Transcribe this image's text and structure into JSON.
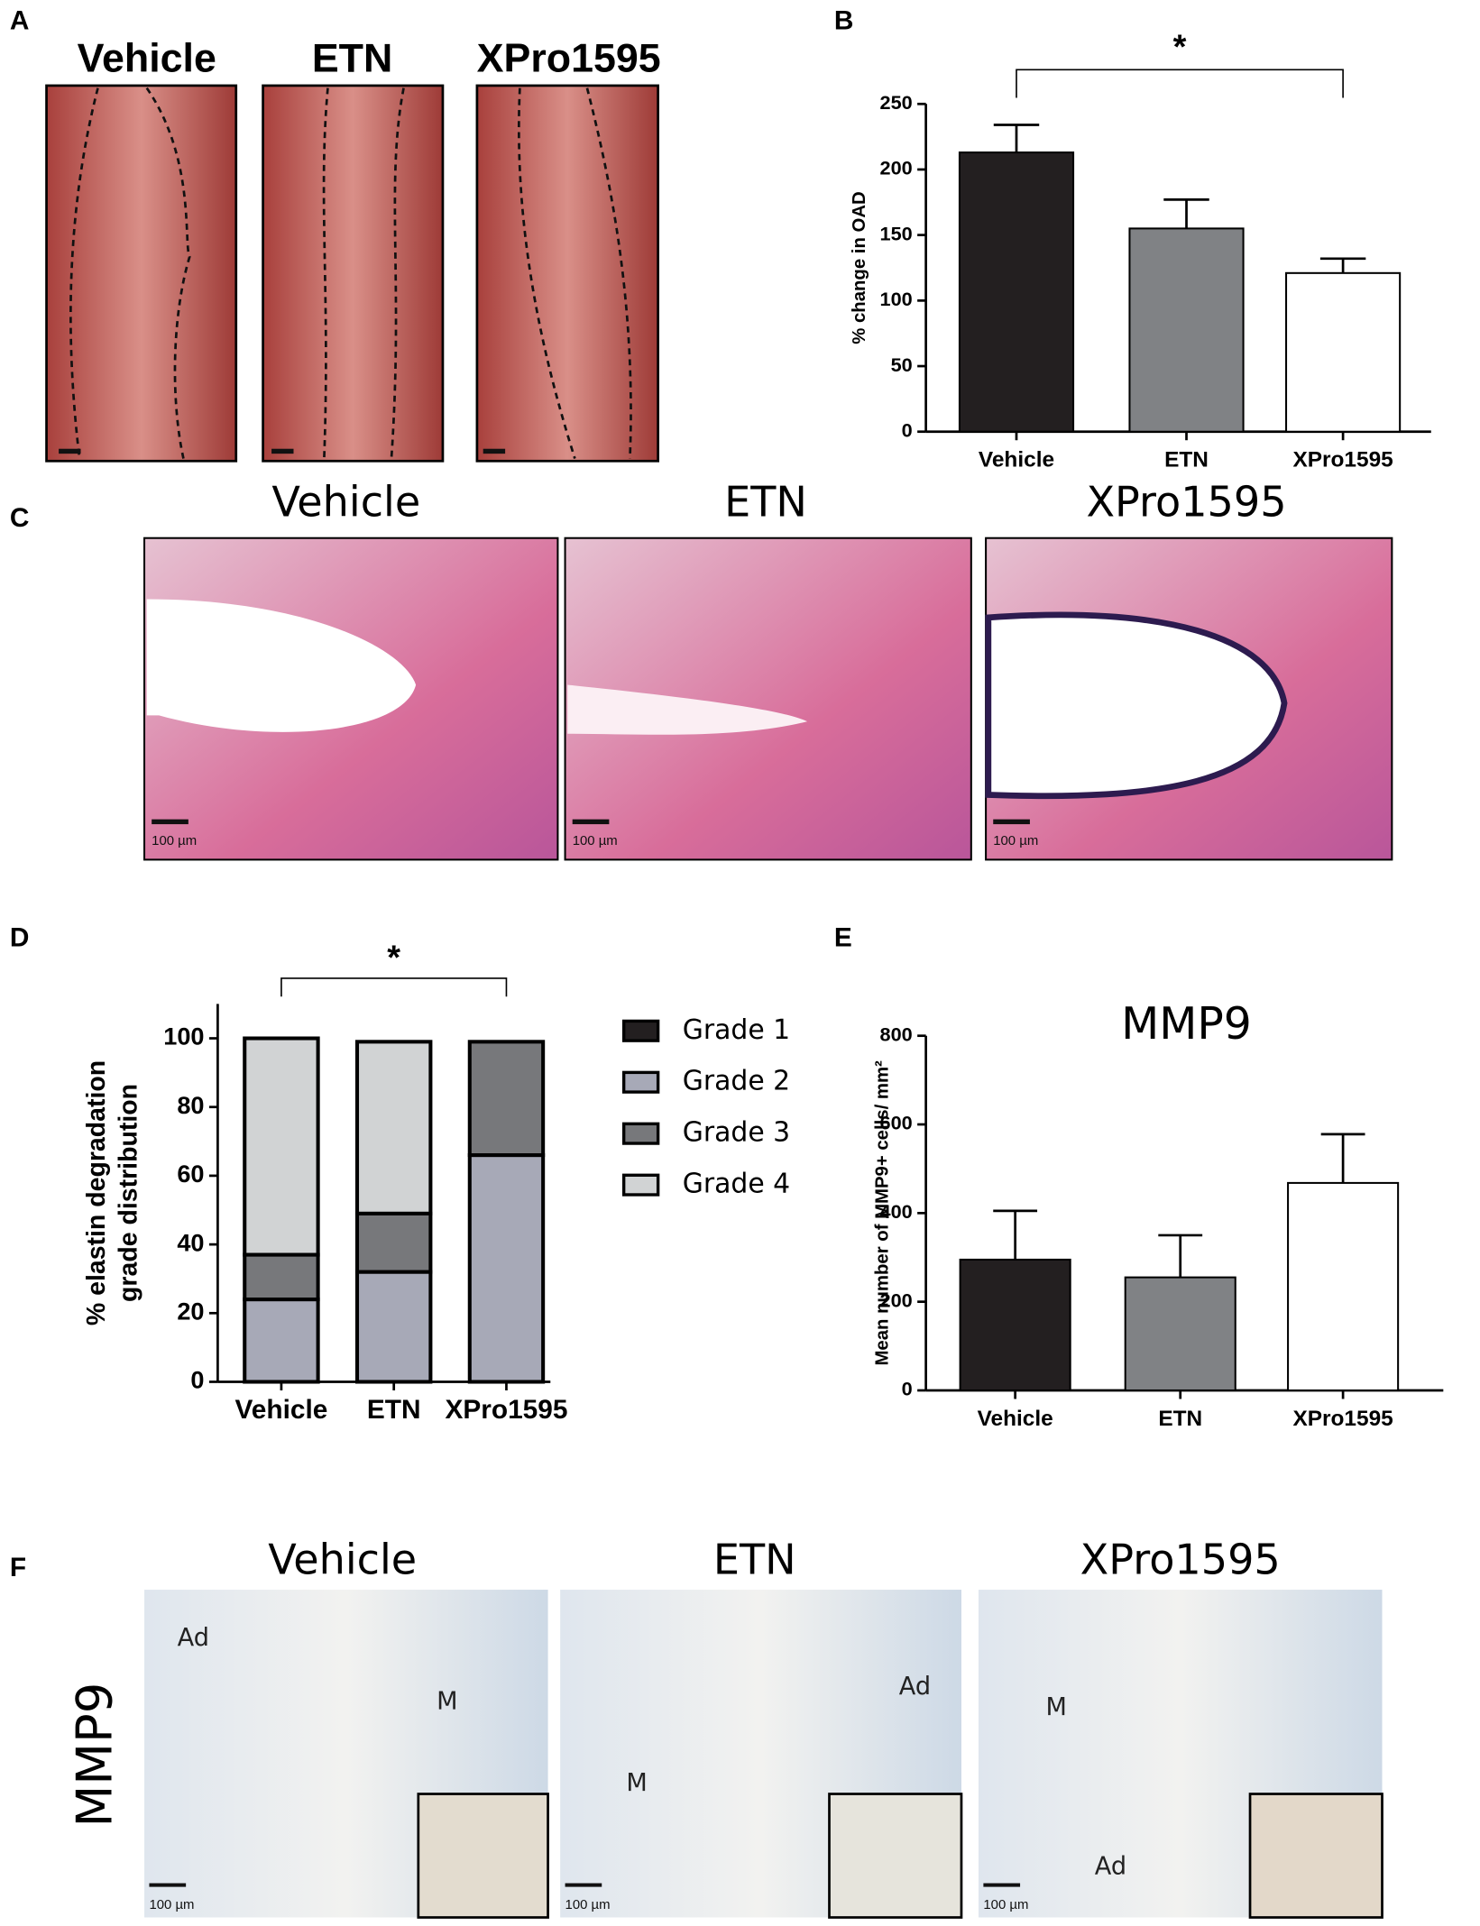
{
  "panel_labels": [
    "A",
    "B",
    "C",
    "D",
    "E",
    "F"
  ],
  "panels": {
    "a": {
      "headings": [
        "Vehicle",
        "ETN",
        "XPro1595"
      ]
    },
    "c": {
      "headings": [
        "Vehicle",
        "ETN",
        "XPro1595"
      ],
      "scale_label": "100 µm"
    },
    "f": {
      "headings": [
        "Vehicle",
        "ETN",
        "XPro1595"
      ],
      "scale_label": "100 µm",
      "row_label": "MMP9",
      "region_labels": [
        [
          "Ad",
          "M"
        ],
        [
          "Ad",
          "M"
        ],
        [
          "M",
          "Ad"
        ]
      ]
    }
  },
  "chart_data": [
    {
      "type": "bar",
      "ylabel": "% change in OAD",
      "categories": [
        "Vehicle",
        "ETN",
        "XPro1595"
      ],
      "values": [
        213,
        155,
        121
      ],
      "errors": [
        21,
        22,
        11
      ],
      "colors": [
        "#231f20",
        "#808285",
        "#ffffff"
      ],
      "ylim": [
        0,
        250
      ],
      "yticks": [
        0,
        50,
        100,
        150,
        200,
        250
      ],
      "annotation": "*"
    },
    {
      "type": "stacked-bar",
      "ylabel": [
        "% elastin degradation",
        "grade distribution"
      ],
      "categories": [
        "Vehicle",
        "ETN",
        "XPro1595"
      ],
      "series": [
        {
          "name": "Grade 1",
          "color": "#231f20",
          "values": [
            0,
            0,
            0
          ]
        },
        {
          "name": "Grade 2",
          "color": "#a7a9b7",
          "values": [
            24,
            32,
            66
          ]
        },
        {
          "name": "Grade 3",
          "color": "#77787b",
          "values": [
            13,
            17,
            33
          ]
        },
        {
          "name": "Grade 4",
          "color": "#d1d3d4",
          "values": [
            63,
            50,
            0
          ]
        }
      ],
      "ylim": [
        0,
        110
      ],
      "yticks": [
        0,
        20,
        40,
        60,
        80,
        100
      ],
      "annotation": "*",
      "legend": "right"
    },
    {
      "type": "bar",
      "title": "MMP9",
      "ylabel": "Mean number of MMP9+ cells/ mm²",
      "categories": [
        "Vehicle",
        "ETN",
        "XPro1595"
      ],
      "values": [
        295,
        255,
        468
      ],
      "errors": [
        110,
        95,
        110
      ],
      "colors": [
        "#231f20",
        "#808285",
        "#ffffff"
      ],
      "ylim": [
        0,
        800
      ],
      "yticks": [
        0,
        200,
        400,
        600,
        800
      ]
    }
  ]
}
